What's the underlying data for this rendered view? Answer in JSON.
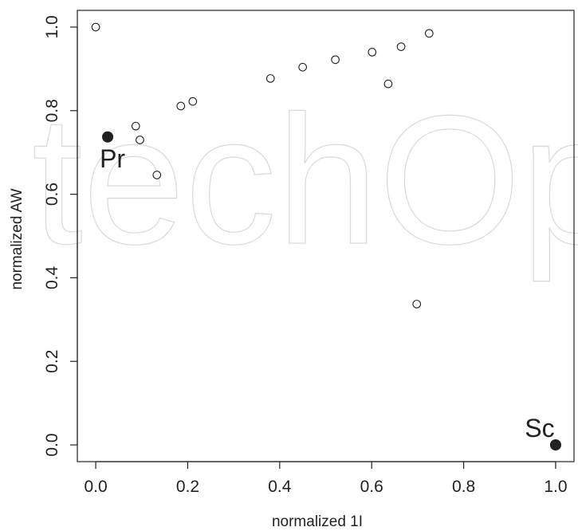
{
  "chart_data": {
    "type": "scatter",
    "title": "",
    "xlabel": "normalized 1I",
    "ylabel": "normalized AW",
    "xlim": [
      -0.04,
      1.04
    ],
    "ylim": [
      -0.04,
      1.04
    ],
    "x_ticks": [
      "0.0",
      "0.2",
      "0.4",
      "0.6",
      "0.8",
      "1.0"
    ],
    "y_ticks": [
      "0.0",
      "0.2",
      "0.4",
      "0.6",
      "0.8",
      "1.0"
    ],
    "grid": false,
    "legend": "none",
    "series": [
      {
        "marker": "open-circle",
        "points": [
          {
            "x": 0.0,
            "y": 1.0
          },
          {
            "x": 0.087,
            "y": 0.763
          },
          {
            "x": 0.096,
            "y": 0.73
          },
          {
            "x": 0.133,
            "y": 0.646
          },
          {
            "x": 0.185,
            "y": 0.811
          },
          {
            "x": 0.211,
            "y": 0.822
          },
          {
            "x": 0.38,
            "y": 0.877
          },
          {
            "x": 0.45,
            "y": 0.904
          },
          {
            "x": 0.521,
            "y": 0.922
          },
          {
            "x": 0.601,
            "y": 0.94
          },
          {
            "x": 0.636,
            "y": 0.864
          },
          {
            "x": 0.664,
            "y": 0.953
          },
          {
            "x": 0.698,
            "y": 0.337
          },
          {
            "x": 0.725,
            "y": 0.985
          }
        ]
      },
      {
        "marker": "filled-circle",
        "points": [
          {
            "x": 0.026,
            "y": 0.737,
            "label": "Pr"
          },
          {
            "x": 1.0,
            "y": 0.0,
            "label": "Sc"
          }
        ]
      }
    ]
  },
  "watermark": "techOpen",
  "colors": {
    "ink": "#222222",
    "watermark": "#d9d9d9"
  }
}
